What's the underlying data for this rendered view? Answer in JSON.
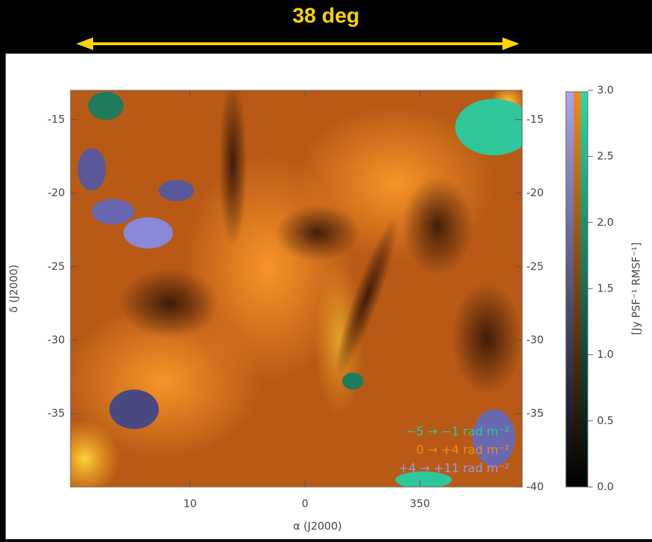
{
  "chart_data": {
    "type": "map",
    "title": "38 deg",
    "x_label": "α (J2000)",
    "y_label": "δ (J2000)",
    "colorbar_label": "[Jy PSF⁻¹ RMSF⁻¹]",
    "xlim": [
      20.4,
      -18.9
    ],
    "xticks": [
      10,
      0,
      {
        "value": -10,
        "label": "350"
      }
    ],
    "ylim": [
      -40,
      -13
    ],
    "yticks": [
      -15,
      -20,
      -25,
      -30,
      -35
    ],
    "y2lim": [
      -40,
      -13
    ],
    "y2ticks": [
      -15,
      -20,
      -25,
      -30,
      -35,
      -40
    ],
    "clim": [
      0,
      3
    ],
    "cticks": [
      {
        "value": 0,
        "label": "0.0"
      },
      {
        "value": 0.5,
        "label": "0.5"
      },
      {
        "value": 1,
        "label": "1.0"
      },
      {
        "value": 1.5,
        "label": "1.5"
      },
      {
        "value": 2,
        "label": "2.0"
      },
      {
        "value": 2.5,
        "label": "2.5"
      },
      {
        "value": 3,
        "label": "3.0"
      }
    ],
    "legend": [
      {
        "text": "−5 →  −1 rad m⁻²",
        "color": "#2fc79a"
      },
      {
        "text": "0 →  +4 rad m⁻²",
        "color": "#f08a1c"
      },
      {
        "text": "+4 → +11 rad m⁻²",
        "color": "#9a98e6"
      }
    ]
  }
}
